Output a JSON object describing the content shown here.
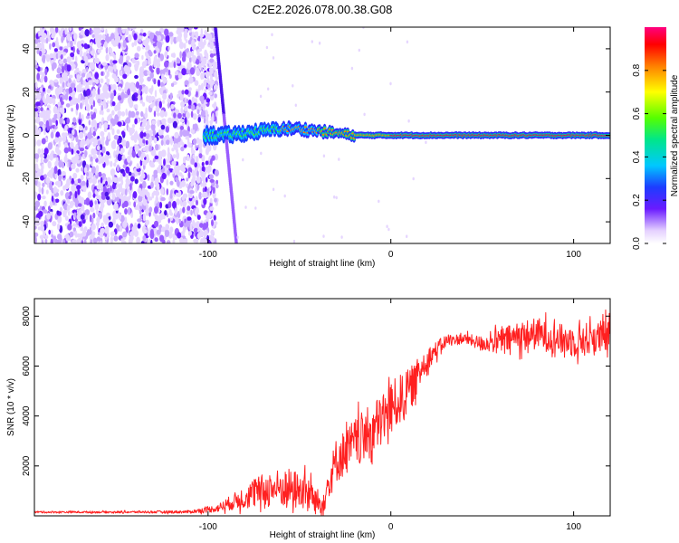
{
  "title": "C2E2.2026.078.00.38.G08",
  "chart_data": [
    {
      "type": "heatmap",
      "xlabel": "Height of straight line (km)",
      "ylabel": "Frequency (Hz)",
      "xlim": [
        -195,
        120
      ],
      "ylim": [
        -50,
        50
      ],
      "xticks": [
        -100,
        0,
        100
      ],
      "yticks": [
        -40,
        -20,
        0,
        20,
        40
      ],
      "grid": false,
      "colorbar": {
        "label": "Normalized spectral amplitude",
        "range": [
          0,
          1
        ],
        "ticks": [
          0.0,
          0.2,
          0.4,
          0.6,
          0.8
        ]
      },
      "features": {
        "main_tone_frequency_trace": [
          [
            -100,
            0
          ],
          [
            -90,
            0
          ],
          [
            -80,
            1
          ],
          [
            -70,
            2
          ],
          [
            -60,
            3
          ],
          [
            -50,
            3
          ],
          [
            -40,
            2
          ],
          [
            -30,
            1
          ],
          [
            -20,
            0
          ],
          [
            -10,
            0
          ],
          [
            0,
            0
          ],
          [
            120,
            0
          ]
        ],
        "noise_region_x": [
          -195,
          -95
        ]
      }
    },
    {
      "type": "line",
      "xlabel": "Height of straight line (km)",
      "ylabel": "SNR (10 * v/v)",
      "xlim": [
        -195,
        120
      ],
      "ylim": [
        0,
        8700
      ],
      "xticks": [
        -100,
        0,
        100
      ],
      "yticks": [
        2000,
        4000,
        6000,
        8000
      ],
      "grid": false,
      "series": [
        {
          "color": "#ff2020",
          "x": [
            -195,
            -150,
            -110,
            -95,
            -85,
            -75,
            -65,
            -55,
            -45,
            -38,
            -30,
            -20,
            -10,
            0,
            10,
            20,
            30,
            40,
            50,
            60,
            70,
            80,
            90,
            100,
            110,
            120
          ],
          "y": [
            150,
            150,
            160,
            300,
            600,
            900,
            1100,
            1100,
            900,
            400,
            2200,
            2900,
            3400,
            4300,
            5000,
            6300,
            7000,
            7100,
            6900,
            7000,
            7200,
            7300,
            7100,
            7000,
            7100,
            7200
          ],
          "noise": [
            40,
            40,
            60,
            150,
            350,
            600,
            750,
            800,
            700,
            500,
            900,
            1000,
            1100,
            1100,
            900,
            450,
            250,
            200,
            300,
            500,
            600,
            650,
            600,
            650,
            700,
            700
          ]
        }
      ]
    }
  ]
}
